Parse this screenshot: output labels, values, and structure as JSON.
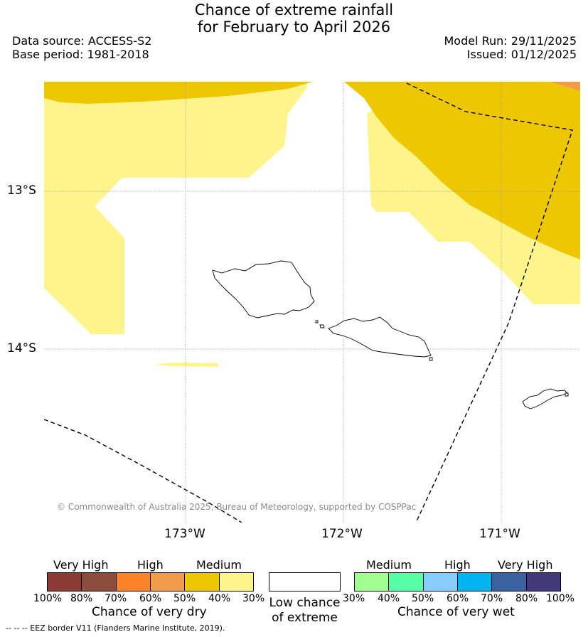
{
  "title_line1": "Chance of extreme rainfall",
  "title_line2": "for February to April 2026",
  "data_source": "Data source: ACCESS-S2",
  "base_period": "Base period: 1981-2018",
  "model_run": "Model Run: 29/11/2025",
  "issued": "Issued: 01/12/2025",
  "axes": {
    "lat_labels": [
      "13°S",
      "14°S"
    ],
    "lon_labels": [
      "173°W",
      "172°W",
      "171°W"
    ]
  },
  "copyright": "© Commonwealth of Australia 2025, Bureau of Meteorology, supported by COSPPac",
  "legend": {
    "dry": {
      "groups": [
        "Very High",
        "High",
        "Medium"
      ],
      "ticks": [
        "100%",
        "80%",
        "70%",
        "60%",
        "50%",
        "40%",
        "30%"
      ],
      "colors": [
        "#8b3a34",
        "#8c4c3c",
        "#fe8226",
        "#f19c48",
        "#edc702",
        "#fdf58b"
      ],
      "title": "Chance of very dry"
    },
    "low": {
      "title_line1": "Low chance",
      "title_line2": "of extreme",
      "color": "#ffffff"
    },
    "wet": {
      "groups": [
        "Medium",
        "High",
        "Very High"
      ],
      "ticks": [
        "30%",
        "40%",
        "50%",
        "60%",
        "70%",
        "80%",
        "100%"
      ],
      "colors": [
        "#a0ff90",
        "#56ffa5",
        "#87cdfb",
        "#00b5ef",
        "#3a62a0",
        "#413978"
      ],
      "title": "Chance of very wet"
    }
  },
  "footnote": "--  --  -- EEZ border V11 (Flanders Marine Institute, 2019)."
}
